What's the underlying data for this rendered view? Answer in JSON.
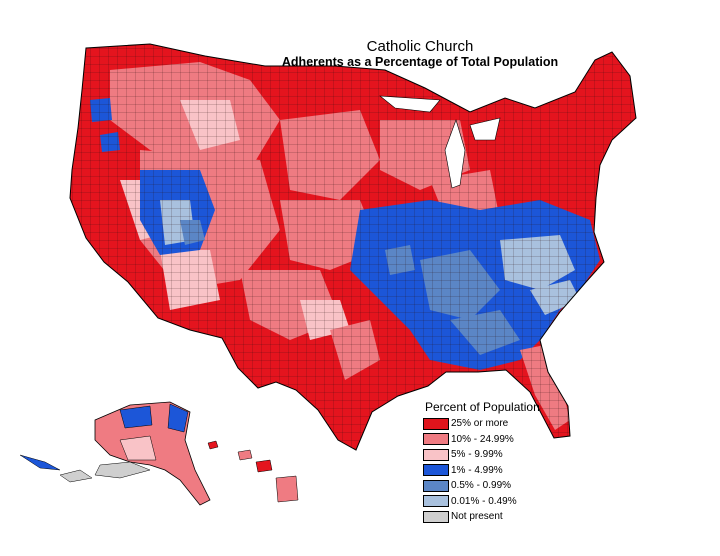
{
  "title": "Catholic Church",
  "subtitle": "Adherents as a Percentage of Total Population",
  "legend": {
    "title": "Percent of Population",
    "items": [
      {
        "label": "25% or more",
        "color": "#e0141c"
      },
      {
        "label": "10% - 24.99%",
        "color": "#ef7b82"
      },
      {
        "label": "5% - 9.99%",
        "color": "#f9c3c7"
      },
      {
        "label": "1% - 4.99%",
        "color": "#1c56d8"
      },
      {
        "label": "0.5% - 0.99%",
        "color": "#5b86c6"
      },
      {
        "label": "0.01% - 0.49%",
        "color": "#a9c1de"
      },
      {
        "label": "Not present",
        "color": "#cfcfcf"
      }
    ]
  }
}
